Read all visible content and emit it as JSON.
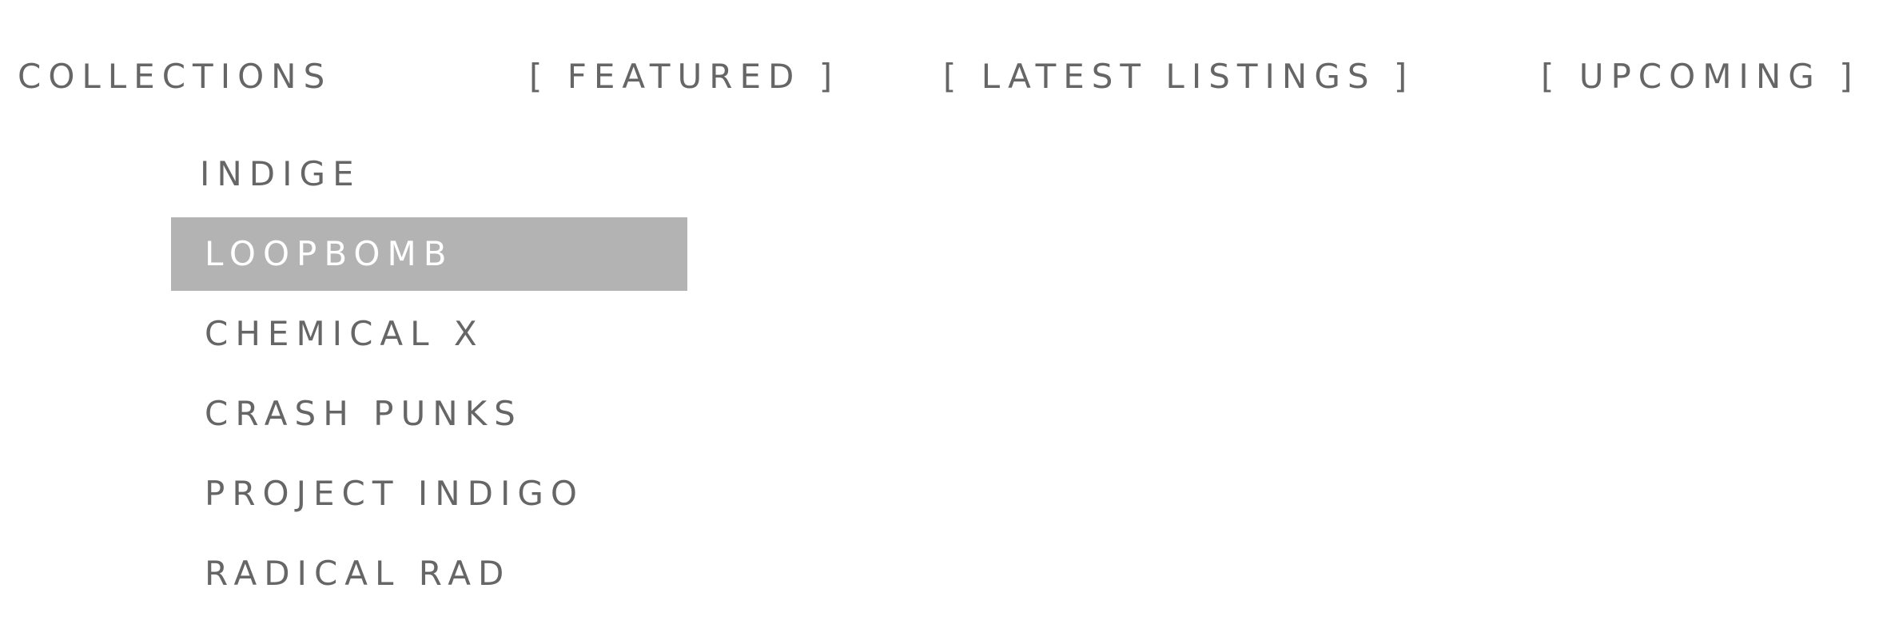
{
  "nav": {
    "collections_label": "COLLECTIONS",
    "featured_label": "[ FEATURED ]",
    "latest_listings_label": "[ LATEST LISTINGS ]",
    "upcoming_label": "[ UPCOMING ]"
  },
  "dropdown": {
    "items": [
      {
        "label": "INDIGE"
      },
      {
        "label": "LOOPBOMB"
      },
      {
        "label": "CHEMICAL X"
      },
      {
        "label": "CRASH PUNKS"
      },
      {
        "label": "PROJECT INDIGO"
      },
      {
        "label": "RADICAL RAD"
      }
    ],
    "selected_label": "LOOPBOMB"
  },
  "colors": {
    "text": "#666666",
    "selected_background": "#b3b3b3",
    "selected_text": "#ffffff",
    "background": "#ffffff"
  }
}
